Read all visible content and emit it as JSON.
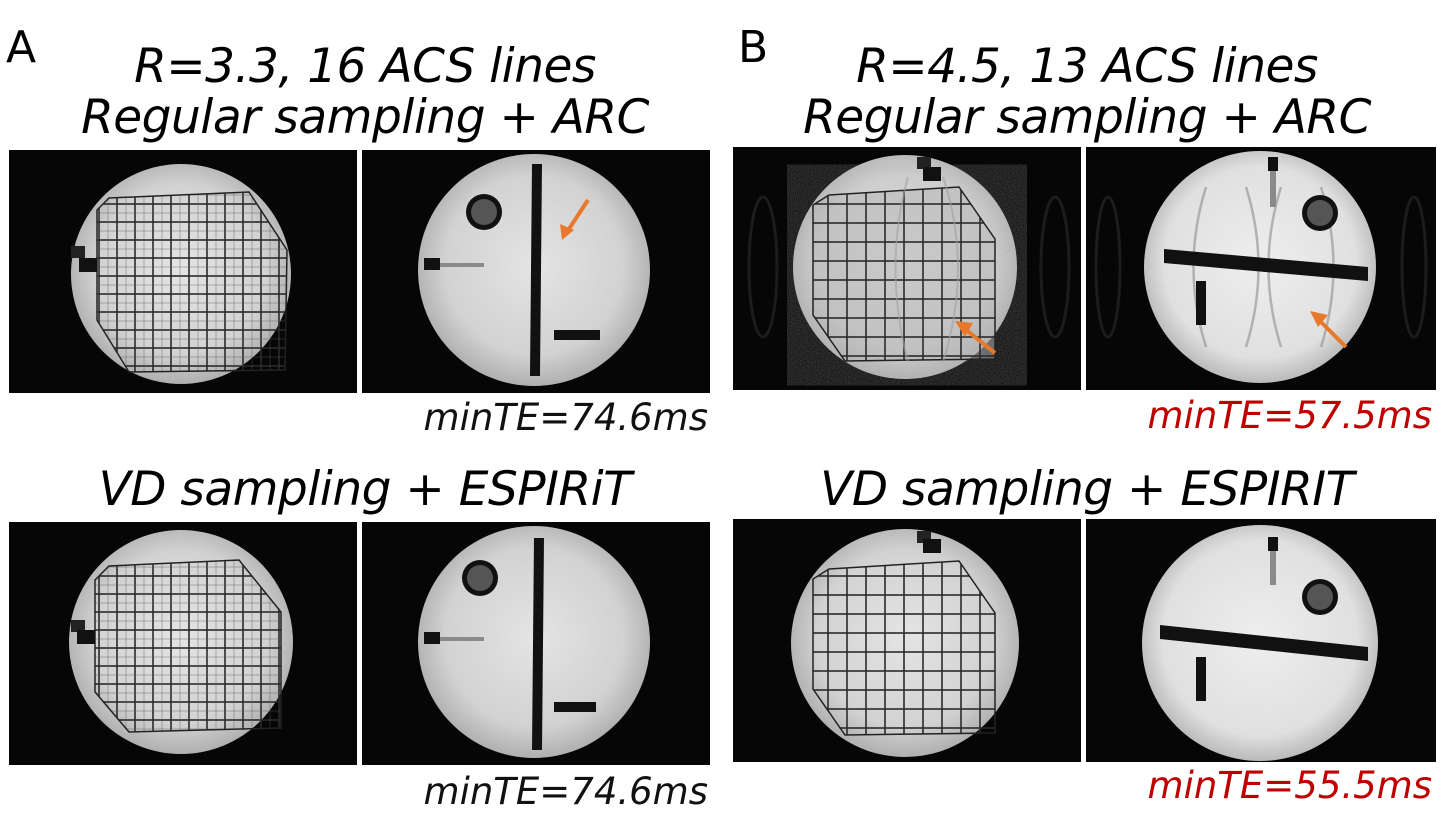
{
  "panel_a": {
    "letter": "A",
    "title_line1": "R=3.3, 16 ACS lines",
    "title_line2": "Regular sampling + ARC",
    "row2_title": "VD sampling + ESPIRiT",
    "te_top": "minTE=74.6ms",
    "te_bottom": "minTE=74.6ms",
    "te_color": "#111111"
  },
  "panel_b": {
    "letter": "B",
    "title_line1": "R=4.5, 13 ACS lines",
    "title_line2": "Regular sampling + ARC",
    "row2_title": "VD sampling + ESPIRIT",
    "te_top": "minTE=57.5ms",
    "te_bottom": "minTE=55.5ms",
    "te_color": "#c00000"
  },
  "colors": {
    "arrow": "#e8782a",
    "image_background": "#060606",
    "phantom": "#d9d9d9"
  },
  "images": {
    "a_top_left": "grid-phantom",
    "a_top_right": "bar-phantom-with-arrow",
    "a_bottom_left": "grid-phantom",
    "a_bottom_right": "bar-phantom",
    "b_top_left": "grid-phantom-artifact-with-arrow",
    "b_top_right": "bar-phantom-artifact-with-arrow",
    "b_bottom_left": "grid-phantom",
    "b_bottom_right": "bar-phantom"
  }
}
